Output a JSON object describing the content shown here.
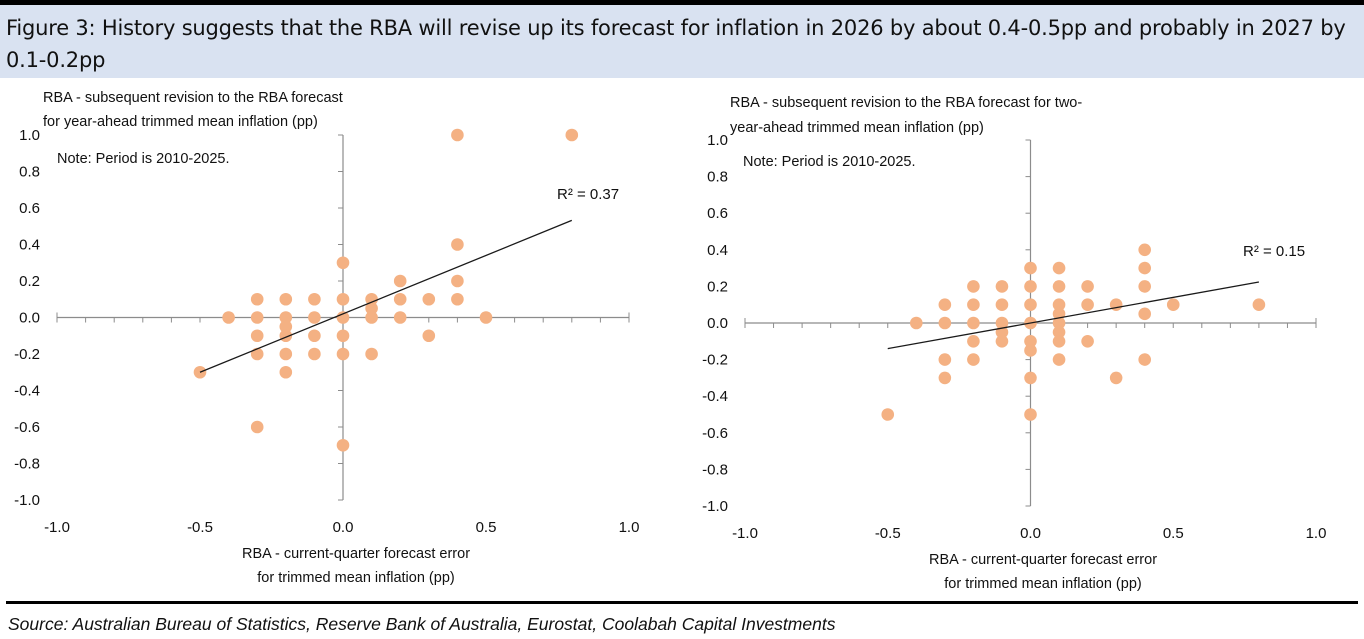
{
  "header": {
    "title": "Figure 3: History suggests that the RBA will revise up its forecast for inflation in 2026 by about 0.4-0.5pp and probably in 2027 by 0.1-0.2pp",
    "band_color": "#d9e2f1"
  },
  "source": "Source:  Australian Bureau of Statistics, Reserve Bank of Australia, Eurostat, Coolabah Capital Investments",
  "colors": {
    "marker": "#f4b183",
    "trendline": "#1a1a1a",
    "axis": "#8c8c8c"
  },
  "chart_data": [
    {
      "type": "scatter",
      "title": "",
      "ylabel_lines": [
        "RBA - subsequent revision to the RBA forecast",
        "for year-ahead trimmed mean inflation (pp)"
      ],
      "xlabel_lines": [
        "RBA - current-quarter forecast error",
        "for trimmed mean inflation (pp)"
      ],
      "note": "Note: Period is 2010-2025.",
      "xlim": [
        -1.0,
        1.0
      ],
      "ylim": [
        -1.0,
        1.0
      ],
      "x_tick_labels": [
        "-1.0",
        "-0.5",
        "0.0",
        "0.5",
        "1.0"
      ],
      "y_tick_labels": [
        "1.0",
        "0.8",
        "0.6",
        "0.4",
        "0.2",
        "0.0",
        "-0.2",
        "-0.4",
        "-0.6",
        "-0.8",
        "-1.0"
      ],
      "grid": false,
      "trendline": {
        "x_range": [
          -0.5,
          0.8
        ],
        "slope": 0.64,
        "intercept": 0.02,
        "r2_label": "R² = 0.37"
      },
      "points": [
        [
          -0.5,
          -0.3
        ],
        [
          -0.4,
          0.0
        ],
        [
          -0.3,
          0.1
        ],
        [
          -0.3,
          0.0
        ],
        [
          -0.3,
          -0.1
        ],
        [
          -0.3,
          -0.2
        ],
        [
          -0.3,
          -0.6
        ],
        [
          -0.2,
          0.1
        ],
        [
          -0.2,
          0.0
        ],
        [
          -0.2,
          -0.05
        ],
        [
          -0.2,
          -0.1
        ],
        [
          -0.2,
          -0.2
        ],
        [
          -0.2,
          -0.3
        ],
        [
          -0.1,
          0.1
        ],
        [
          -0.1,
          0.0
        ],
        [
          -0.1,
          -0.1
        ],
        [
          -0.1,
          -0.2
        ],
        [
          0.0,
          0.3
        ],
        [
          0.0,
          0.1
        ],
        [
          0.0,
          0.0
        ],
        [
          0.0,
          -0.1
        ],
        [
          0.0,
          -0.2
        ],
        [
          0.0,
          -0.7
        ],
        [
          0.1,
          0.1
        ],
        [
          0.1,
          0.05
        ],
        [
          0.1,
          0.0
        ],
        [
          0.1,
          -0.2
        ],
        [
          0.2,
          0.2
        ],
        [
          0.2,
          0.1
        ],
        [
          0.2,
          0.0
        ],
        [
          0.3,
          0.1
        ],
        [
          0.3,
          -0.1
        ],
        [
          0.4,
          1.0
        ],
        [
          0.4,
          0.4
        ],
        [
          0.4,
          0.2
        ],
        [
          0.4,
          0.1
        ],
        [
          0.5,
          0.0
        ],
        [
          0.8,
          1.0
        ]
      ]
    },
    {
      "type": "scatter",
      "title": "",
      "ylabel_lines": [
        "RBA - subsequent revision to the RBA forecast for two-",
        "year-ahead trimmed mean inflation (pp)"
      ],
      "xlabel_lines": [
        "RBA - current-quarter forecast error",
        "for trimmed mean inflation (pp)"
      ],
      "note": "Note: Period is 2010-2025.",
      "xlim": [
        -1.0,
        1.0
      ],
      "ylim": [
        -1.0,
        1.0
      ],
      "x_tick_labels": [
        "-1.0",
        "-0.5",
        "0.0",
        "0.5",
        "1.0"
      ],
      "y_tick_labels": [
        "1.0",
        "0.8",
        "0.6",
        "0.4",
        "0.2",
        "0.0",
        "-0.2",
        "-0.4",
        "-0.6",
        "-0.8",
        "-1.0"
      ],
      "grid": false,
      "trendline": {
        "x_range": [
          -0.5,
          0.8
        ],
        "slope": 0.28,
        "intercept": 0.0,
        "r2_label": "R² = 0.15"
      },
      "points": [
        [
          -0.5,
          -0.5
        ],
        [
          -0.4,
          0.0
        ],
        [
          -0.3,
          0.1
        ],
        [
          -0.3,
          0.0
        ],
        [
          -0.3,
          -0.2
        ],
        [
          -0.3,
          -0.3
        ],
        [
          -0.2,
          0.2
        ],
        [
          -0.2,
          0.1
        ],
        [
          -0.2,
          0.0
        ],
        [
          -0.2,
          -0.1
        ],
        [
          -0.2,
          -0.2
        ],
        [
          -0.1,
          0.2
        ],
        [
          -0.1,
          0.1
        ],
        [
          -0.1,
          0.0
        ],
        [
          -0.1,
          -0.05
        ],
        [
          -0.1,
          -0.1
        ],
        [
          0.0,
          0.3
        ],
        [
          0.0,
          0.2
        ],
        [
          0.0,
          0.1
        ],
        [
          0.0,
          0.0
        ],
        [
          0.0,
          -0.1
        ],
        [
          0.0,
          -0.15
        ],
        [
          0.0,
          -0.3
        ],
        [
          0.0,
          -0.5
        ],
        [
          0.1,
          0.3
        ],
        [
          0.1,
          0.2
        ],
        [
          0.1,
          0.1
        ],
        [
          0.1,
          0.05
        ],
        [
          0.1,
          0.0
        ],
        [
          0.1,
          -0.05
        ],
        [
          0.1,
          -0.1
        ],
        [
          0.1,
          -0.2
        ],
        [
          0.2,
          0.2
        ],
        [
          0.2,
          0.1
        ],
        [
          0.2,
          -0.1
        ],
        [
          0.3,
          0.1
        ],
        [
          0.3,
          -0.3
        ],
        [
          0.4,
          0.4
        ],
        [
          0.4,
          0.3
        ],
        [
          0.4,
          0.2
        ],
        [
          0.4,
          0.05
        ],
        [
          0.4,
          -0.2
        ],
        [
          0.5,
          0.1
        ],
        [
          0.8,
          0.1
        ]
      ]
    }
  ]
}
